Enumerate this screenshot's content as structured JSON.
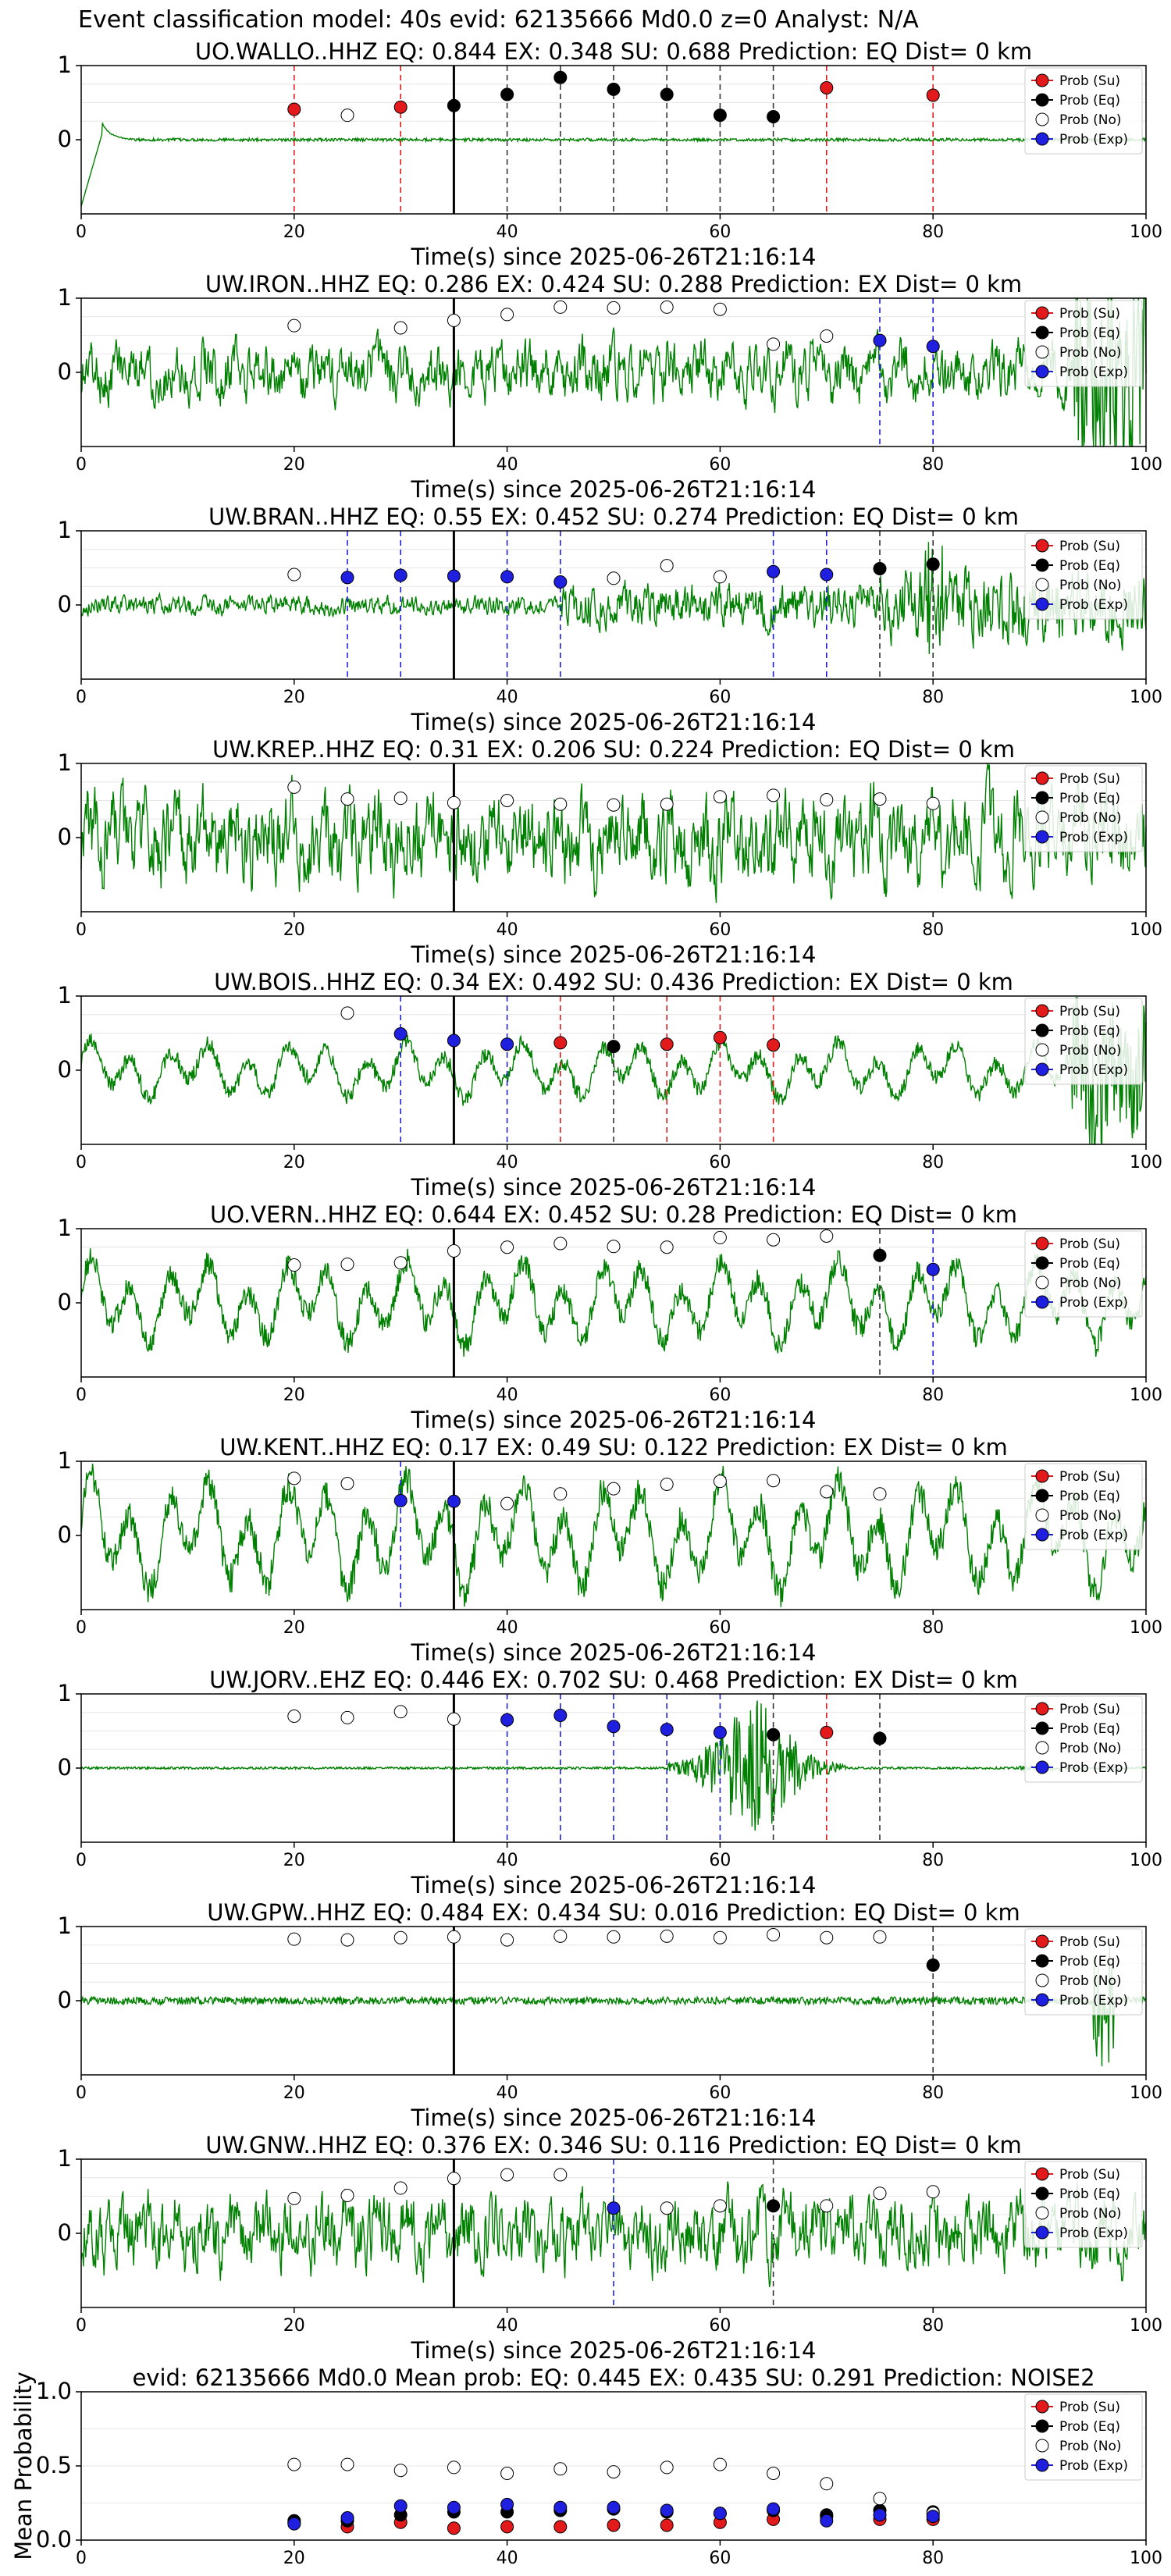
{
  "figure_title": "Event classification model: 40s evid: 62135666 Md0.0 z=0 Analyst: N/A",
  "legend": [
    "Prob (Su)",
    "Prob (Eq)",
    "Prob (No)",
    "Prob (Exp)"
  ],
  "colors": {
    "su": "#e31a1c",
    "eq": "#000000",
    "no": "#ffffff",
    "exp": "#1f1fe0",
    "trace": "#008000",
    "su_line": "#e31a1c",
    "eq_line": "#333333",
    "exp_line": "#1f1fe0"
  },
  "xlabel": "Time(s) since 2025-06-26T21:16:14",
  "chart_data": [
    {
      "type": "line",
      "title": "UO.WALLO..HHZ   EQ: 0.844  EX: 0.348  SU: 0.688   Prediction: EQ    Dist= 0 km",
      "xlim": [
        0,
        100
      ],
      "ylim": [
        -1,
        1
      ],
      "xticks": [
        0,
        20,
        40,
        60,
        80,
        100
      ],
      "yticks": [
        0,
        1
      ],
      "event_line": 35,
      "trace_amp": 0.04,
      "trace_style": "onset",
      "points": [
        {
          "x": 20,
          "y": 0.41,
          "c": "su"
        },
        {
          "x": 25,
          "y": 0.33,
          "c": "no"
        },
        {
          "x": 30,
          "y": 0.44,
          "c": "su"
        },
        {
          "x": 35,
          "y": 0.46,
          "c": "eq"
        },
        {
          "x": 40,
          "y": 0.61,
          "c": "eq"
        },
        {
          "x": 45,
          "y": 0.84,
          "c": "eq"
        },
        {
          "x": 50,
          "y": 0.68,
          "c": "eq"
        },
        {
          "x": 55,
          "y": 0.61,
          "c": "eq"
        },
        {
          "x": 60,
          "y": 0.33,
          "c": "eq"
        },
        {
          "x": 65,
          "y": 0.31,
          "c": "eq"
        },
        {
          "x": 70,
          "y": 0.7,
          "c": "su"
        },
        {
          "x": 80,
          "y": 0.6,
          "c": "su"
        }
      ]
    },
    {
      "type": "line",
      "title": "UW.IRON..HHZ   EQ: 0.286  EX: 0.424  SU: 0.288   Prediction: EX    Dist= 0 km",
      "xlim": [
        0,
        100
      ],
      "ylim": [
        -1,
        1
      ],
      "xticks": [
        0,
        20,
        40,
        60,
        80,
        100
      ],
      "yticks": [
        0,
        1
      ],
      "event_line": 35,
      "trace_amp": 0.35,
      "trace_style": "noise",
      "points": [
        {
          "x": 20,
          "y": 0.63,
          "c": "no"
        },
        {
          "x": 30,
          "y": 0.6,
          "c": "no"
        },
        {
          "x": 35,
          "y": 0.7,
          "c": "no"
        },
        {
          "x": 40,
          "y": 0.78,
          "c": "no"
        },
        {
          "x": 45,
          "y": 0.88,
          "c": "no"
        },
        {
          "x": 50,
          "y": 0.87,
          "c": "no"
        },
        {
          "x": 55,
          "y": 0.88,
          "c": "no"
        },
        {
          "x": 60,
          "y": 0.85,
          "c": "no"
        },
        {
          "x": 65,
          "y": 0.38,
          "c": "no"
        },
        {
          "x": 70,
          "y": 0.49,
          "c": "no"
        },
        {
          "x": 75,
          "y": 0.43,
          "c": "exp"
        },
        {
          "x": 80,
          "y": 0.35,
          "c": "exp"
        }
      ]
    },
    {
      "type": "line",
      "title": "UW.BRAN..HHZ   EQ: 0.55  EX: 0.452  SU: 0.274   Prediction: EQ    Dist= 0 km",
      "xlim": [
        0,
        100
      ],
      "ylim": [
        -1,
        1
      ],
      "xticks": [
        0,
        20,
        40,
        60,
        80,
        100
      ],
      "yticks": [
        0,
        1
      ],
      "event_line": 35,
      "trace_amp": 0.15,
      "trace_style": "growing",
      "points": [
        {
          "x": 20,
          "y": 0.41,
          "c": "no"
        },
        {
          "x": 25,
          "y": 0.37,
          "c": "exp"
        },
        {
          "x": 30,
          "y": 0.4,
          "c": "exp"
        },
        {
          "x": 35,
          "y": 0.39,
          "c": "exp"
        },
        {
          "x": 40,
          "y": 0.38,
          "c": "exp"
        },
        {
          "x": 45,
          "y": 0.31,
          "c": "exp"
        },
        {
          "x": 50,
          "y": 0.36,
          "c": "no"
        },
        {
          "x": 55,
          "y": 0.53,
          "c": "no"
        },
        {
          "x": 60,
          "y": 0.38,
          "c": "no"
        },
        {
          "x": 65,
          "y": 0.45,
          "c": "exp"
        },
        {
          "x": 70,
          "y": 0.41,
          "c": "exp"
        },
        {
          "x": 75,
          "y": 0.49,
          "c": "eq"
        },
        {
          "x": 80,
          "y": 0.55,
          "c": "eq"
        }
      ]
    },
    {
      "type": "line",
      "title": "UW.KREP..HHZ   EQ: 0.31  EX: 0.206  SU: 0.224   Prediction: EQ    Dist= 0 km",
      "xlim": [
        0,
        100
      ],
      "ylim": [
        -1,
        1
      ],
      "xticks": [
        0,
        20,
        40,
        60,
        80,
        100
      ],
      "yticks": [
        0,
        1
      ],
      "event_line": 35,
      "trace_amp": 0.55,
      "trace_style": "noise",
      "points": [
        {
          "x": 20,
          "y": 0.68,
          "c": "no"
        },
        {
          "x": 25,
          "y": 0.52,
          "c": "no"
        },
        {
          "x": 30,
          "y": 0.53,
          "c": "no"
        },
        {
          "x": 35,
          "y": 0.47,
          "c": "no"
        },
        {
          "x": 40,
          "y": 0.5,
          "c": "no"
        },
        {
          "x": 45,
          "y": 0.45,
          "c": "no"
        },
        {
          "x": 50,
          "y": 0.44,
          "c": "no"
        },
        {
          "x": 55,
          "y": 0.45,
          "c": "no"
        },
        {
          "x": 60,
          "y": 0.55,
          "c": "no"
        },
        {
          "x": 65,
          "y": 0.57,
          "c": "no"
        },
        {
          "x": 70,
          "y": 0.51,
          "c": "no"
        },
        {
          "x": 75,
          "y": 0.52,
          "c": "no"
        },
        {
          "x": 80,
          "y": 0.46,
          "c": "no"
        }
      ]
    },
    {
      "type": "line",
      "title": "UW.BOIS..HHZ   EQ: 0.34  EX: 0.492  SU: 0.436   Prediction: EX    Dist= 0 km",
      "xlim": [
        0,
        100
      ],
      "ylim": [
        -1,
        1
      ],
      "xticks": [
        0,
        20,
        40,
        60,
        80,
        100
      ],
      "yticks": [
        0,
        1
      ],
      "event_line": 35,
      "trace_amp": 0.3,
      "trace_style": "wave",
      "points": [
        {
          "x": 25,
          "y": 0.77,
          "c": "no"
        },
        {
          "x": 30,
          "y": 0.49,
          "c": "exp"
        },
        {
          "x": 35,
          "y": 0.4,
          "c": "exp"
        },
        {
          "x": 40,
          "y": 0.35,
          "c": "exp"
        },
        {
          "x": 45,
          "y": 0.37,
          "c": "su"
        },
        {
          "x": 50,
          "y": 0.32,
          "c": "eq"
        },
        {
          "x": 55,
          "y": 0.35,
          "c": "su"
        },
        {
          "x": 60,
          "y": 0.44,
          "c": "su"
        },
        {
          "x": 65,
          "y": 0.34,
          "c": "su"
        }
      ]
    },
    {
      "type": "line",
      "title": "UO.VERN..HHZ   EQ: 0.644  EX: 0.452  SU: 0.28   Prediction: EQ    Dist= 0 km",
      "xlim": [
        0,
        100
      ],
      "ylim": [
        -1,
        1
      ],
      "xticks": [
        0,
        20,
        40,
        60,
        80,
        100
      ],
      "yticks": [
        0,
        1
      ],
      "event_line": 35,
      "trace_amp": 0.45,
      "trace_style": "wave",
      "points": [
        {
          "x": 20,
          "y": 0.51,
          "c": "no"
        },
        {
          "x": 25,
          "y": 0.52,
          "c": "no"
        },
        {
          "x": 30,
          "y": 0.54,
          "c": "no"
        },
        {
          "x": 35,
          "y": 0.7,
          "c": "no"
        },
        {
          "x": 40,
          "y": 0.75,
          "c": "no"
        },
        {
          "x": 45,
          "y": 0.8,
          "c": "no"
        },
        {
          "x": 50,
          "y": 0.76,
          "c": "no"
        },
        {
          "x": 55,
          "y": 0.75,
          "c": "no"
        },
        {
          "x": 60,
          "y": 0.88,
          "c": "no"
        },
        {
          "x": 65,
          "y": 0.85,
          "c": "no"
        },
        {
          "x": 70,
          "y": 0.9,
          "c": "no"
        },
        {
          "x": 75,
          "y": 0.64,
          "c": "eq"
        },
        {
          "x": 80,
          "y": 0.45,
          "c": "exp"
        }
      ]
    },
    {
      "type": "line",
      "title": "UW.KENT..HHZ   EQ: 0.17  EX: 0.49  SU: 0.122   Prediction: EX    Dist= 0 km",
      "xlim": [
        0,
        100
      ],
      "ylim": [
        -1,
        1
      ],
      "xticks": [
        0,
        20,
        40,
        60,
        80,
        100
      ],
      "yticks": [
        0,
        1
      ],
      "event_line": 35,
      "trace_amp": 0.6,
      "trace_style": "wave",
      "points": [
        {
          "x": 20,
          "y": 0.77,
          "c": "no"
        },
        {
          "x": 25,
          "y": 0.7,
          "c": "no"
        },
        {
          "x": 30,
          "y": 0.47,
          "c": "exp"
        },
        {
          "x": 35,
          "y": 0.46,
          "c": "exp"
        },
        {
          "x": 40,
          "y": 0.43,
          "c": "no"
        },
        {
          "x": 45,
          "y": 0.56,
          "c": "no"
        },
        {
          "x": 50,
          "y": 0.63,
          "c": "no"
        },
        {
          "x": 55,
          "y": 0.69,
          "c": "no"
        },
        {
          "x": 60,
          "y": 0.73,
          "c": "no"
        },
        {
          "x": 65,
          "y": 0.74,
          "c": "no"
        },
        {
          "x": 70,
          "y": 0.59,
          "c": "no"
        },
        {
          "x": 75,
          "y": 0.56,
          "c": "no"
        }
      ]
    },
    {
      "type": "line",
      "title": "UW.JORV..EHZ   EQ: 0.446  EX: 0.702  SU: 0.468   Prediction: EX    Dist= 0 km",
      "xlim": [
        0,
        100
      ],
      "ylim": [
        -1,
        1
      ],
      "xticks": [
        0,
        20,
        40,
        60,
        80,
        100
      ],
      "yticks": [
        0,
        1
      ],
      "event_line": 35,
      "trace_amp": 0.02,
      "trace_style": "burst",
      "points": [
        {
          "x": 20,
          "y": 0.7,
          "c": "no"
        },
        {
          "x": 25,
          "y": 0.68,
          "c": "no"
        },
        {
          "x": 30,
          "y": 0.76,
          "c": "no"
        },
        {
          "x": 35,
          "y": 0.66,
          "c": "no"
        },
        {
          "x": 40,
          "y": 0.65,
          "c": "exp"
        },
        {
          "x": 45,
          "y": 0.71,
          "c": "exp"
        },
        {
          "x": 50,
          "y": 0.56,
          "c": "exp"
        },
        {
          "x": 55,
          "y": 0.52,
          "c": "exp"
        },
        {
          "x": 60,
          "y": 0.48,
          "c": "exp"
        },
        {
          "x": 65,
          "y": 0.45,
          "c": "eq"
        },
        {
          "x": 70,
          "y": 0.48,
          "c": "su"
        },
        {
          "x": 75,
          "y": 0.4,
          "c": "eq"
        }
      ]
    },
    {
      "type": "line",
      "title": "UW.GPW..HHZ   EQ: 0.484  EX: 0.434  SU: 0.016   Prediction: EQ    Dist= 0 km",
      "xlim": [
        0,
        100
      ],
      "ylim": [
        -1,
        1
      ],
      "xticks": [
        0,
        20,
        40,
        60,
        80,
        100
      ],
      "yticks": [
        0,
        1
      ],
      "event_line": 35,
      "trace_amp": 0.05,
      "trace_style": "lowspike",
      "points": [
        {
          "x": 20,
          "y": 0.83,
          "c": "no"
        },
        {
          "x": 25,
          "y": 0.82,
          "c": "no"
        },
        {
          "x": 30,
          "y": 0.85,
          "c": "no"
        },
        {
          "x": 35,
          "y": 0.86,
          "c": "no"
        },
        {
          "x": 40,
          "y": 0.82,
          "c": "no"
        },
        {
          "x": 45,
          "y": 0.87,
          "c": "no"
        },
        {
          "x": 50,
          "y": 0.86,
          "c": "no"
        },
        {
          "x": 55,
          "y": 0.87,
          "c": "no"
        },
        {
          "x": 60,
          "y": 0.85,
          "c": "no"
        },
        {
          "x": 65,
          "y": 0.89,
          "c": "no"
        },
        {
          "x": 70,
          "y": 0.85,
          "c": "no"
        },
        {
          "x": 75,
          "y": 0.86,
          "c": "no"
        },
        {
          "x": 80,
          "y": 0.48,
          "c": "eq"
        }
      ]
    },
    {
      "type": "line",
      "title": "UW.GNW..HHZ   EQ: 0.376  EX: 0.346  SU: 0.116   Prediction: EQ    Dist= 0 km",
      "xlim": [
        0,
        100
      ],
      "ylim": [
        -1,
        1
      ],
      "xticks": [
        0,
        20,
        40,
        60,
        80,
        100
      ],
      "yticks": [
        0,
        1
      ],
      "event_line": 35,
      "trace_amp": 0.45,
      "trace_style": "noise",
      "points": [
        {
          "x": 20,
          "y": 0.47,
          "c": "no"
        },
        {
          "x": 25,
          "y": 0.51,
          "c": "no"
        },
        {
          "x": 30,
          "y": 0.61,
          "c": "no"
        },
        {
          "x": 35,
          "y": 0.74,
          "c": "no"
        },
        {
          "x": 40,
          "y": 0.79,
          "c": "no"
        },
        {
          "x": 45,
          "y": 0.79,
          "c": "no"
        },
        {
          "x": 50,
          "y": 0.34,
          "c": "exp"
        },
        {
          "x": 55,
          "y": 0.34,
          "c": "no"
        },
        {
          "x": 60,
          "y": 0.37,
          "c": "no"
        },
        {
          "x": 65,
          "y": 0.37,
          "c": "eq"
        },
        {
          "x": 70,
          "y": 0.37,
          "c": "no"
        },
        {
          "x": 75,
          "y": 0.54,
          "c": "no"
        },
        {
          "x": 80,
          "y": 0.56,
          "c": "no"
        }
      ]
    },
    {
      "type": "scatter",
      "title": "evid: 62135666  Md0.0   Mean prob:   EQ: 0.445  EX: 0.435  SU: 0.291   Prediction: NOISE2",
      "ylabel": "Mean Probability",
      "xlim": [
        0,
        100
      ],
      "ylim": [
        0,
        1
      ],
      "xticks": [
        0,
        20,
        40,
        60,
        80,
        100
      ],
      "yticks": [
        0.0,
        0.5,
        1.0
      ],
      "ytick_labels": [
        "0.0",
        "0.5",
        "1.0"
      ],
      "series": [
        {
          "name": "Prob (Su)",
          "c": "su",
          "x": [
            20,
            25,
            30,
            35,
            40,
            45,
            50,
            55,
            60,
            65,
            70,
            75,
            80
          ],
          "y": [
            0.12,
            0.09,
            0.12,
            0.08,
            0.09,
            0.09,
            0.1,
            0.1,
            0.12,
            0.14,
            0.16,
            0.14,
            0.14
          ]
        },
        {
          "name": "Prob (Eq)",
          "c": "eq",
          "x": [
            20,
            25,
            30,
            35,
            40,
            45,
            50,
            55,
            60,
            65,
            70,
            75,
            80
          ],
          "y": [
            0.13,
            0.13,
            0.17,
            0.19,
            0.19,
            0.2,
            0.21,
            0.19,
            0.18,
            0.2,
            0.17,
            0.2,
            0.19
          ]
        },
        {
          "name": "Prob (No)",
          "c": "no",
          "x": [
            20,
            25,
            30,
            35,
            40,
            45,
            50,
            55,
            60,
            65,
            70,
            75,
            80
          ],
          "y": [
            0.51,
            0.51,
            0.47,
            0.49,
            0.45,
            0.48,
            0.46,
            0.49,
            0.51,
            0.45,
            0.38,
            0.28,
            0.18
          ]
        },
        {
          "name": "Prob (Exp)",
          "c": "exp",
          "x": [
            20,
            25,
            30,
            35,
            40,
            45,
            50,
            55,
            60,
            65,
            70,
            75,
            80
          ],
          "y": [
            0.11,
            0.15,
            0.23,
            0.22,
            0.24,
            0.22,
            0.22,
            0.2,
            0.18,
            0.21,
            0.13,
            0.17,
            0.16
          ]
        }
      ]
    }
  ]
}
